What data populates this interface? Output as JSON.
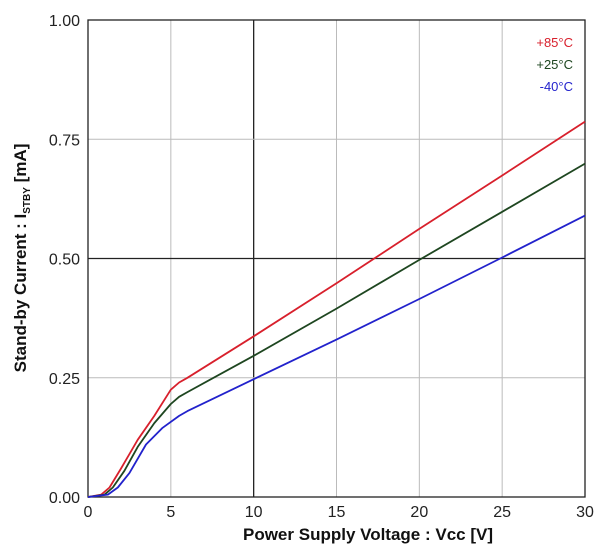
{
  "chart_data": {
    "type": "line",
    "xlabel": "Power Supply Voltage : Vcc [V]",
    "ylabel_main": "Stand-by Current : I",
    "ylabel_sub": "STBY",
    "ylabel_tail": " [mA]",
    "xlim": [
      0,
      30
    ],
    "ylim": [
      0,
      1.0
    ],
    "x_ticks": [
      "0",
      "5",
      "10",
      "15",
      "20",
      "25",
      "30"
    ],
    "y_ticks": [
      "0.00",
      "0.25",
      "0.50",
      "0.75",
      "1.00"
    ],
    "grid": true,
    "legend_position": "top-right",
    "series": [
      {
        "name": "+85°C",
        "color": "#d8202c",
        "points": [
          [
            0,
            0
          ],
          [
            0.8,
            0.005
          ],
          [
            1.3,
            0.02
          ],
          [
            2,
            0.06
          ],
          [
            3,
            0.12
          ],
          [
            4,
            0.17
          ],
          [
            5,
            0.225
          ],
          [
            5.5,
            0.24
          ],
          [
            6,
            0.25
          ],
          [
            10,
            0.337
          ],
          [
            15,
            0.448
          ],
          [
            20,
            0.562
          ],
          [
            25,
            0.674
          ],
          [
            30,
            0.787
          ]
        ]
      },
      {
        "name": "+25°C",
        "color": "#1e4620",
        "points": [
          [
            0,
            0
          ],
          [
            1,
            0.005
          ],
          [
            1.5,
            0.02
          ],
          [
            2.2,
            0.055
          ],
          [
            3,
            0.105
          ],
          [
            4,
            0.155
          ],
          [
            5,
            0.195
          ],
          [
            5.5,
            0.21
          ],
          [
            6,
            0.22
          ],
          [
            10,
            0.296
          ],
          [
            15,
            0.395
          ],
          [
            20,
            0.497
          ],
          [
            25,
            0.598
          ],
          [
            30,
            0.699
          ]
        ]
      },
      {
        "name": "-40°C",
        "color": "#2222cc",
        "points": [
          [
            0,
            0
          ],
          [
            1.2,
            0.005
          ],
          [
            1.8,
            0.02
          ],
          [
            2.5,
            0.05
          ],
          [
            3.5,
            0.11
          ],
          [
            4.5,
            0.145
          ],
          [
            5.5,
            0.17
          ],
          [
            6,
            0.18
          ],
          [
            10,
            0.247
          ],
          [
            15,
            0.33
          ],
          [
            20,
            0.415
          ],
          [
            25,
            0.502
          ],
          [
            30,
            0.59
          ]
        ]
      }
    ]
  }
}
